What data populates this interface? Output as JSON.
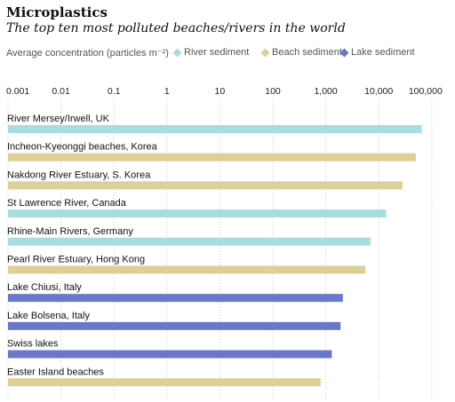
{
  "chart_data": {
    "type": "bar",
    "orientation": "horizontal",
    "title": "Microplastics",
    "subtitle": "The top ten most polluted beaches/rivers in the world",
    "measure_label": "Average concentration (particles m⁻²)",
    "scale": "log",
    "xlim": [
      0.001,
      200000
    ],
    "ticks": [
      0.001,
      0.01,
      0.1,
      1,
      10,
      100,
      1000,
      10000,
      100000
    ],
    "tick_labels": [
      "0.001",
      "0.01",
      "0.1",
      "1",
      "10",
      "100",
      "1,000",
      "10,000",
      "100,000"
    ],
    "grid": "vertical-dotted",
    "legend_position": "top",
    "legend": [
      {
        "name": "River sediment",
        "color": "#a9dcdc"
      },
      {
        "name": "Beach sediment",
        "color": "#dccf97"
      },
      {
        "name": "Lake sediment",
        "color": "#6a78cc"
      }
    ],
    "categories": [
      "River Mersey/Irwell, UK",
      "Incheon-Kyeonggi beaches, Korea",
      "Nakdong River Estuary, S. Korea",
      "St Lawrence River, Canada",
      "Rhine-Main Rivers, Germany",
      "Pearl River Estuary, Hong Kong",
      "Lake Chiusi, Italy",
      "Lake Bolsena, Italy",
      "Swiss lakes",
      "Easter Island beaches"
    ],
    "types": [
      "River sediment",
      "Beach sediment",
      "Beach sediment",
      "River sediment",
      "River sediment",
      "Beach sediment",
      "Lake sediment",
      "Lake sediment",
      "Lake sediment",
      "Beach sediment"
    ],
    "values": [
      65000,
      50000,
      28000,
      13800,
      7000,
      5600,
      2100,
      1900,
      1300,
      800
    ]
  }
}
